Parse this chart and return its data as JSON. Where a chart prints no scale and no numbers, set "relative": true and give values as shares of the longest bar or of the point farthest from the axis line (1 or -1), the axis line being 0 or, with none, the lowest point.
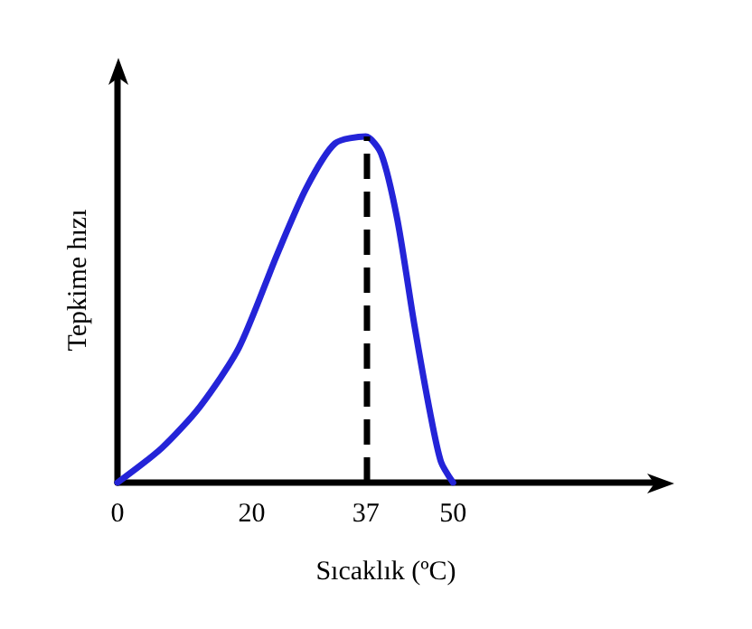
{
  "chart_data": {
    "type": "line",
    "xlabel": "Sıcaklık (ºC)",
    "ylabel": "Tepkime hızı",
    "relative": true,
    "x": [
      0,
      6.6,
      12.3,
      18.1,
      23.8,
      28.1,
      32.4,
      37,
      39.3,
      41.7,
      44.2,
      46.6,
      48.2,
      50
    ],
    "series": [
      {
        "color": "#2424d8",
        "values": [
          0,
          0.1,
          0.22,
          0.39,
          0.66,
          0.85,
          0.98,
          1,
          0.95,
          0.76,
          0.46,
          0.2,
          0.06,
          0
        ]
      }
    ],
    "xlim": [
      0,
      80
    ],
    "xticks": [
      0,
      20,
      37,
      50
    ],
    "ref_lines": [
      {
        "axis": "x",
        "value": 37,
        "color": "#000000",
        "line_style": "dashed"
      }
    ],
    "grid": false,
    "marker": "none",
    "line_style": "solid"
  }
}
